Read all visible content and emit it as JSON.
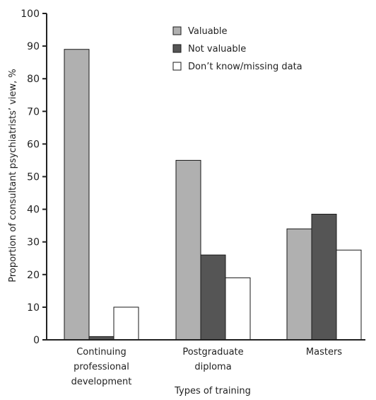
{
  "chart_data": {
    "type": "bar",
    "title": "",
    "xlabel": "Types of training",
    "ylabel": "Proportion of consultant psychiatrists’ view, %",
    "ylim": [
      0,
      100
    ],
    "yticks": [
      "0",
      "10",
      "20",
      "30",
      "40",
      "50",
      "60",
      "70",
      "80",
      "90",
      "100"
    ],
    "categories": [
      [
        "Continuing",
        "professional",
        "development"
      ],
      [
        "Postgraduate",
        "diploma"
      ],
      [
        "Masters"
      ]
    ],
    "series": [
      {
        "name": "Valuable",
        "color": "#b0b0b0",
        "values": [
          89,
          55,
          34
        ]
      },
      {
        "name": "Not valuable",
        "color": "#555555",
        "values": [
          1,
          26,
          38.5
        ]
      },
      {
        "name": "Don’t know/missing data",
        "color": "#ffffff",
        "values": [
          10,
          19,
          27.5
        ]
      }
    ],
    "legend_position": "top-right",
    "grid": false
  }
}
